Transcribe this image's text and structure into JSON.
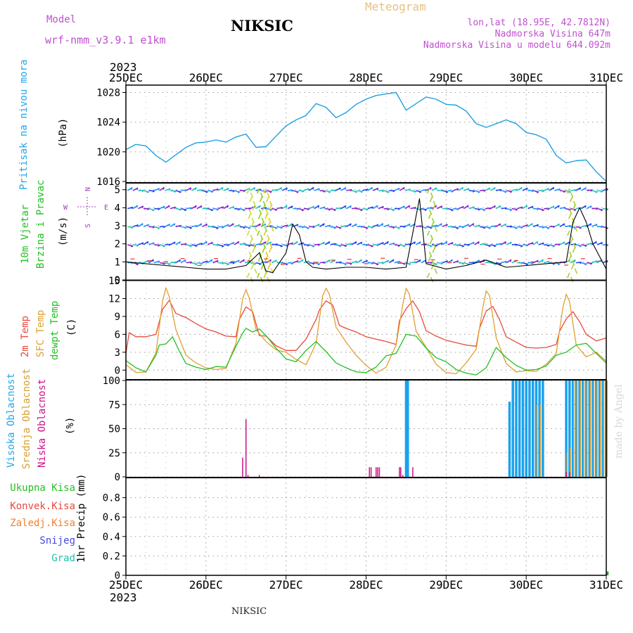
{
  "header": {
    "model_label": "Model",
    "model_name": "wrf-nmm_v3.9.1 e1km",
    "station": "NIKSIC",
    "product": "Meteogram",
    "coords": "lon,lat (18.95E, 42.7812N)",
    "elevation": "Nadmorska Visina 647m",
    "model_elevation": "Nadmorska Visina u modelu 644.092m",
    "footer_station": "NIKSIC",
    "credit": "made by Angel"
  },
  "time_axis": {
    "year": "2023",
    "labels": [
      "25DEC",
      "26DEC",
      "27DEC",
      "28DEC",
      "29DEC",
      "30DEC",
      "31DEC"
    ]
  },
  "panels": {
    "pressure": {
      "title": "Pritisak na nivou mora",
      "unit": "(hPa)"
    },
    "wind": {
      "title1": "10m Vjetar",
      "title2": "Brzina i Pravac",
      "unit": "(m/s)"
    },
    "temp": {
      "t1": "2m Temp",
      "t2": "SFC Temp",
      "t3": "dewpt Temp",
      "unit": "(C)"
    },
    "cloud": {
      "c1": "Visoka Oblacnost",
      "c2": "Srednja Oblacnost",
      "c3": "Niska Oblacnost",
      "unit": "(%)"
    },
    "precip": {
      "legend": [
        "Ukupna Kisa",
        "Konvek.Kisa",
        "Zaledj.Kisa",
        "Snijeg",
        "Grad"
      ],
      "unit": "1hr Precip (mm)"
    }
  },
  "compass": {
    "n": "N",
    "s": "S",
    "e": "E",
    "w": "W"
  },
  "colors": {
    "pressure": "#1ea0e0",
    "t2m": "#e8493c",
    "sfc": "#e0a030",
    "dew": "#22c022",
    "high_cloud": "#1aa2ec",
    "mid_cloud": "#d8a030",
    "low_cloud": "#cc1188"
  },
  "chart_data": [
    {
      "type": "line",
      "name_key": "pressure",
      "x_unit": "hours since 25DEC 00UTC",
      "ylim": [
        1016,
        1029
      ],
      "yticks": [
        1016,
        1020,
        1024,
        1028
      ],
      "series": [
        {
          "x": [
            0,
            3,
            6,
            9,
            12,
            15,
            18,
            21,
            24,
            27,
            30,
            33,
            36,
            39,
            42,
            45,
            48,
            51,
            54,
            57,
            60,
            63,
            66,
            69,
            72,
            75,
            78,
            81,
            84,
            87,
            90,
            93,
            96,
            99,
            102,
            105,
            108,
            111,
            114,
            117,
            120,
            123,
            126,
            129,
            132,
            135,
            138,
            141,
            144
          ],
          "values": [
            1020.3,
            1021.0,
            1020.8,
            1019.5,
            1018.6,
            1019.6,
            1020.6,
            1021.2,
            1021.3,
            1021.6,
            1021.3,
            1022.0,
            1022.4,
            1020.6,
            1020.7,
            1022.1,
            1023.5,
            1024.3,
            1024.9,
            1026.5,
            1026.0,
            1024.6,
            1025.3,
            1026.4,
            1027.1,
            1027.6,
            1027.8,
            1028.0,
            1025.6,
            1026.5,
            1027.4,
            1027.1,
            1026.4,
            1026.3,
            1025.5,
            1023.8,
            1023.3,
            1023.8,
            1024.3,
            1023.8,
            1022.6,
            1022.3,
            1021.7,
            1019.5,
            1018.5,
            1018.8,
            1018.9,
            1017.3,
            1016.0
          ]
        }
      ]
    },
    {
      "type": "line",
      "name_key": "wind",
      "x_unit": "hours since 25DEC 00UTC",
      "ylim": [
        0,
        5.3
      ],
      "yticks": [
        0,
        1,
        2,
        3,
        4,
        5
      ],
      "series": [
        {
          "x": [
            0,
            6,
            12,
            18,
            24,
            30,
            36,
            40,
            42,
            44,
            48,
            50,
            52,
            54,
            56,
            60,
            66,
            72,
            78,
            84,
            88,
            90,
            96,
            102,
            108,
            114,
            120,
            126,
            132,
            134,
            136,
            138,
            140,
            144
          ],
          "values": [
            1.0,
            0.9,
            0.8,
            0.7,
            0.6,
            0.6,
            0.8,
            1.5,
            0.5,
            0.4,
            1.5,
            3.1,
            2.5,
            1.0,
            0.7,
            0.6,
            0.7,
            0.7,
            0.6,
            0.7,
            4.5,
            0.9,
            0.6,
            0.8,
            1.1,
            0.7,
            0.8,
            0.9,
            1.0,
            3.2,
            4.0,
            3.2,
            2.0,
            0.6
          ]
        }
      ]
    },
    {
      "type": "line",
      "name_key": "temp",
      "x_unit": "hours since 25DEC 00UTC",
      "ylim": [
        -1.5,
        15
      ],
      "yticks": [
        0,
        3,
        6,
        9,
        12,
        15
      ],
      "series": [
        {
          "name_key": "t1",
          "x": [
            0,
            1,
            3,
            6,
            9,
            11,
            13,
            15,
            18,
            21,
            24,
            27,
            30,
            33,
            34,
            36,
            38,
            40,
            42,
            45,
            48,
            51,
            54,
            57,
            58,
            60,
            62,
            64,
            66,
            69,
            72,
            75,
            78,
            81,
            82,
            84,
            86,
            88,
            90,
            93,
            96,
            99,
            102,
            105,
            106,
            108,
            110,
            112,
            114,
            117,
            120,
            123,
            126,
            129,
            130,
            132,
            134,
            136,
            138,
            141,
            144
          ],
          "values": [
            2.8,
            6.3,
            5.6,
            5.6,
            6.0,
            10.2,
            11.7,
            9.5,
            8.8,
            7.8,
            6.9,
            6.4,
            5.7,
            5.6,
            8.5,
            10.6,
            9.8,
            5.8,
            5.7,
            4.1,
            3.3,
            3.3,
            5.2,
            8.5,
            10.1,
            11.6,
            10.9,
            7.5,
            7.0,
            6.4,
            5.6,
            5.2,
            4.8,
            4.3,
            8.3,
            10.3,
            11.6,
            9.8,
            6.6,
            5.7,
            5.0,
            4.6,
            4.2,
            4.0,
            7.0,
            9.9,
            10.7,
            8.5,
            5.6,
            4.7,
            3.8,
            3.7,
            3.8,
            4.3,
            6.5,
            8.6,
            9.8,
            8.1,
            6.0,
            4.9,
            5.4
          ]
        },
        {
          "name_key": "t2",
          "x": [
            0,
            1,
            3,
            6,
            9,
            11,
            12,
            13,
            15,
            18,
            21,
            24,
            27,
            30,
            33,
            35,
            36,
            37,
            39,
            42,
            45,
            48,
            51,
            54,
            57,
            59,
            60,
            61,
            63,
            66,
            69,
            72,
            75,
            78,
            81,
            83,
            84,
            85,
            87,
            90,
            93,
            96,
            99,
            102,
            105,
            107,
            108,
            109,
            111,
            114,
            117,
            120,
            123,
            126,
            129,
            131,
            132,
            133,
            135,
            138,
            141,
            144
          ],
          "values": [
            0.9,
            0.5,
            -0.4,
            -0.3,
            2.9,
            11.6,
            13.8,
            12.3,
            6.8,
            2.5,
            1.2,
            0.4,
            0.1,
            0.3,
            4.5,
            12.0,
            13.5,
            12.0,
            6.8,
            4.8,
            3.4,
            3.0,
            1.8,
            0.9,
            4.5,
            12.5,
            13.7,
            12.7,
            7.2,
            4.7,
            2.5,
            0.8,
            -0.5,
            0.5,
            4.2,
            11.0,
            13.7,
            12.7,
            6.5,
            3.8,
            1.0,
            -0.4,
            -0.6,
            1.2,
            3.5,
            10.5,
            13.3,
            12.5,
            5.4,
            1.1,
            -0.3,
            -0.1,
            -0.2,
            1.0,
            2.8,
            10.5,
            12.7,
            11.5,
            4.2,
            2.2,
            3.0,
            1.5
          ]
        },
        {
          "name_key": "t3",
          "x": [
            0,
            3,
            6,
            9,
            10,
            12,
            14,
            16,
            18,
            21,
            24,
            27,
            30,
            33,
            35,
            36,
            38,
            40,
            42,
            45,
            48,
            51,
            54,
            57,
            60,
            63,
            66,
            69,
            72,
            75,
            78,
            81,
            84,
            87,
            90,
            93,
            96,
            99,
            102,
            105,
            108,
            111,
            114,
            117,
            120,
            123,
            126,
            129,
            132,
            135,
            138,
            141,
            144
          ],
          "values": [
            1.6,
            0.4,
            -0.3,
            2.5,
            4.2,
            4.4,
            5.6,
            3.2,
            1.1,
            0.5,
            0.1,
            0.6,
            0.5,
            4.0,
            6.2,
            7.0,
            6.4,
            6.9,
            5.8,
            3.7,
            1.9,
            1.4,
            3.3,
            4.8,
            3.1,
            1.2,
            0.4,
            -0.3,
            -0.4,
            0.5,
            2.4,
            2.8,
            6.0,
            5.7,
            3.7,
            2.1,
            1.4,
            0.1,
            -0.5,
            -0.8,
            0.4,
            3.8,
            2.1,
            0.8,
            0.0,
            0.1,
            0.7,
            2.5,
            3.0,
            4.2,
            4.5,
            2.8,
            1.2
          ]
        }
      ]
    },
    {
      "type": "bar",
      "name_key": "cloud",
      "x_unit": "hours since 25DEC 00UTC",
      "ylim": [
        0,
        100
      ],
      "yticks": [
        0,
        25,
        50,
        75,
        100
      ],
      "series": [
        {
          "name_key": "c1",
          "x": [
            84,
            84.5,
            115,
            116,
            117,
            118,
            119,
            120,
            121,
            122,
            123,
            124,
            125,
            132,
            133,
            134,
            135,
            136,
            137,
            138,
            139,
            140,
            141,
            142,
            143,
            144
          ],
          "values": [
            100,
            100,
            78,
            100,
            100,
            100,
            100,
            100,
            100,
            100,
            100,
            100,
            100,
            100,
            100,
            100,
            100,
            100,
            100,
            100,
            100,
            100,
            100,
            100,
            100,
            100
          ]
        },
        {
          "name_key": "c2",
          "x": [
            123,
            124,
            132,
            133,
            134,
            135,
            136,
            137,
            138,
            139,
            140,
            141,
            142,
            143,
            144
          ],
          "values": [
            75,
            75,
            25,
            30,
            100,
            100,
            100,
            100,
            100,
            100,
            100,
            100,
            100,
            100,
            100
          ]
        },
        {
          "name_key": "c3",
          "x": [
            35,
            36,
            36.6,
            40,
            73,
            73.5,
            75,
            75.5,
            76,
            82,
            82.4,
            83,
            86,
            132,
            133
          ],
          "values": [
            20,
            60,
            2,
            2,
            10,
            10,
            10,
            10,
            10,
            10,
            10,
            2,
            10,
            5,
            5
          ]
        }
      ]
    },
    {
      "type": "bar",
      "name_key": "precip",
      "x_unit": "hours since 25DEC 00UTC",
      "ylim": [
        0,
        1.0
      ],
      "yticks": [
        0,
        0.2,
        0.4,
        0.6,
        0.8
      ],
      "series": [
        {
          "name_key": "total",
          "x": [
            143
          ],
          "values": [
            0.04
          ]
        }
      ]
    }
  ]
}
